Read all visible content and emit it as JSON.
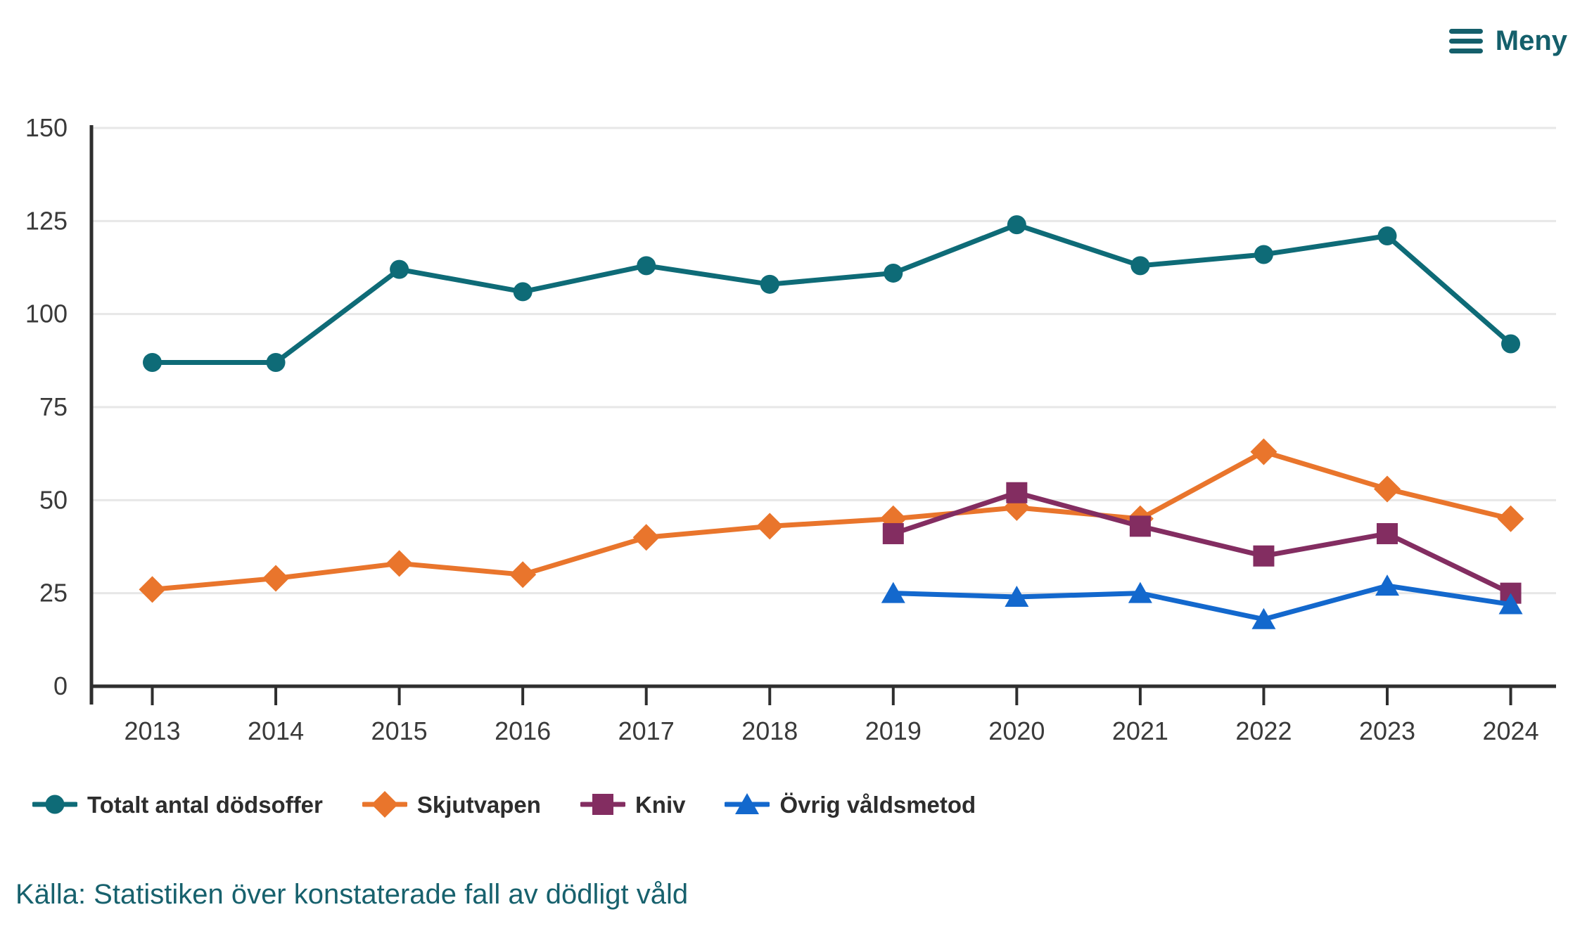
{
  "menu": {
    "label": "Meny"
  },
  "source": "Källa: Statistiken över konstaterade fall av dödligt våld",
  "colors": {
    "accent_teal_text": "#145f6b",
    "axis": "#2e2e2e",
    "gridline": "#e7e7e7",
    "tick_label": "#3a3a3a",
    "legend_text": "#2d2d2d"
  },
  "chart_data": {
    "type": "line",
    "title": "",
    "xlabel": "",
    "ylabel": "",
    "x": [
      2013,
      2014,
      2015,
      2016,
      2017,
      2018,
      2019,
      2020,
      2021,
      2022,
      2023,
      2024
    ],
    "ylim": [
      0,
      150
    ],
    "yticks": [
      0,
      25,
      50,
      75,
      100,
      125,
      150
    ],
    "grid": true,
    "legend_position": "bottom",
    "series": [
      {
        "name": "Totalt antal dödsoffer",
        "color": "#0e6b77",
        "marker": "circle",
        "values": [
          87,
          87,
          112,
          106,
          113,
          108,
          111,
          124,
          113,
          116,
          121,
          92
        ]
      },
      {
        "name": "Skjutvapen",
        "color": "#e9752c",
        "marker": "diamond",
        "values": [
          26,
          29,
          33,
          30,
          40,
          43,
          45,
          48,
          45,
          63,
          53,
          45
        ]
      },
      {
        "name": "Kniv",
        "color": "#832d61",
        "marker": "square",
        "values": [
          null,
          null,
          null,
          null,
          null,
          null,
          41,
          52,
          43,
          35,
          41,
          25
        ]
      },
      {
        "name": "Övrig våldsmetod",
        "color": "#1368cd",
        "marker": "triangle",
        "values": [
          null,
          null,
          null,
          null,
          null,
          null,
          25,
          24,
          25,
          18,
          27,
          22
        ]
      }
    ]
  }
}
